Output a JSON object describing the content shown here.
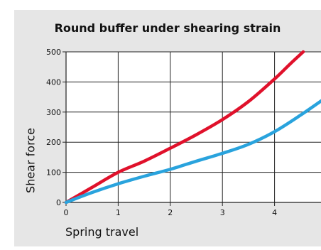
{
  "chart_data": {
    "type": "line",
    "title": "Round buffer under shearing strain",
    "xlabel": "Spring travel",
    "ylabel": "Shear force",
    "xlim": [
      0,
      5
    ],
    "ylim": [
      0,
      500
    ],
    "xticks": [
      0,
      1,
      2,
      3,
      4
    ],
    "yticks": [
      0,
      100,
      200,
      300,
      400,
      500
    ],
    "grid": true,
    "series": [
      {
        "color": "#e0112b",
        "x": [
          0,
          0.5,
          1.0,
          1.5,
          2.0,
          2.5,
          3.0,
          3.5,
          4.0,
          4.3,
          4.55
        ],
        "y": [
          0,
          50,
          100,
          137,
          180,
          225,
          275,
          335,
          410,
          460,
          500
        ]
      },
      {
        "color": "#29a3dd",
        "x": [
          0,
          0.5,
          1.0,
          1.5,
          2.0,
          2.5,
          3.0,
          3.5,
          4.0,
          4.5,
          5.0
        ],
        "y": [
          0,
          33,
          62,
          87,
          110,
          137,
          163,
          193,
          235,
          290,
          350
        ]
      }
    ]
  }
}
